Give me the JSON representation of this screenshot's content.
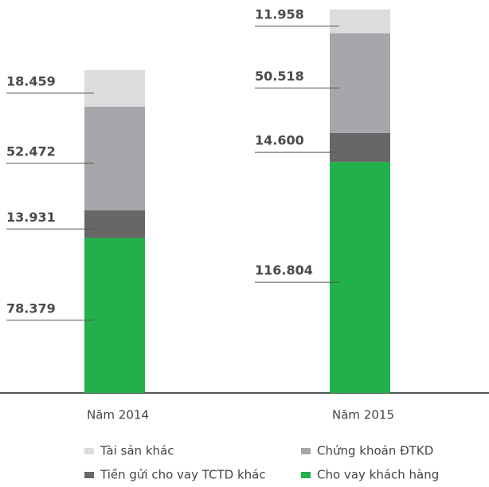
{
  "chart_data": {
    "type": "stacked-bar",
    "categories": [
      "Năm 2014",
      "Năm 2015"
    ],
    "series": [
      {
        "name": "Cho vay khách hàng",
        "color": "#22b04b",
        "values": [
          78379,
          116804
        ],
        "value_labels": [
          "78.379",
          "116.804"
        ]
      },
      {
        "name": "Tiền gửi cho vay TCTD khác",
        "color": "#676767",
        "values": [
          13931,
          14600
        ],
        "value_labels": [
          "13.931",
          "14.600"
        ]
      },
      {
        "name": "Chứng khoán ĐTKD",
        "color": "#a6a7aa",
        "values": [
          52472,
          50518
        ],
        "value_labels": [
          "52.472",
          "50.518"
        ]
      },
      {
        "name": "Tài sản khác",
        "color": "#dcdcdd",
        "values": [
          18459,
          11958
        ],
        "value_labels": [
          "18.459",
          "11.958"
        ]
      }
    ]
  }
}
